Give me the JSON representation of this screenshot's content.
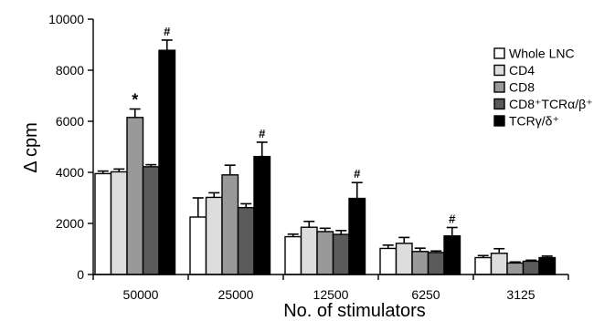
{
  "chart_data": {
    "type": "bar",
    "title": "",
    "xlabel": "No. of stimulators",
    "ylabel": "Δ cpm",
    "ylim": [
      0,
      10000
    ],
    "yticks": [
      0,
      2000,
      4000,
      6000,
      8000,
      10000
    ],
    "grid": false,
    "legend_position": "top-right",
    "categories": [
      "50000",
      "25000",
      "12500",
      "6250",
      "3125"
    ],
    "series": [
      {
        "name": "Whole LNC",
        "color": "#ffffff",
        "values": [
          3950,
          2250,
          1480,
          1020,
          660
        ],
        "errors": [
          100,
          750,
          100,
          130,
          80
        ]
      },
      {
        "name": "CD4",
        "color": "#dddddd",
        "values": [
          4020,
          3020,
          1850,
          1220,
          830
        ],
        "errors": [
          110,
          180,
          230,
          230,
          180
        ]
      },
      {
        "name": "CD8",
        "color": "#999999",
        "values": [
          6150,
          3900,
          1680,
          900,
          450
        ],
        "errors": [
          330,
          380,
          130,
          130,
          40
        ]
      },
      {
        "name": "CD8⁺TCRα/β⁺",
        "color": "#5a5a5a",
        "values": [
          4220,
          2620,
          1570,
          860,
          520
        ],
        "errors": [
          80,
          150,
          150,
          60,
          40
        ]
      },
      {
        "name": "TCRγ/δ⁺",
        "color": "#000000",
        "values": [
          8780,
          4620,
          2980,
          1510,
          660
        ],
        "errors": [
          400,
          560,
          620,
          330,
          60
        ]
      }
    ],
    "annotations": [
      {
        "label": "*",
        "category": "50000",
        "series": "CD8"
      },
      {
        "label": "#",
        "category": "50000",
        "series": "TCRγ/δ⁺"
      },
      {
        "label": "#",
        "category": "25000",
        "series": "TCRγ/δ⁺"
      },
      {
        "label": "#",
        "category": "12500",
        "series": "TCRγ/δ⁺"
      },
      {
        "label": "#",
        "category": "6250",
        "series": "TCRγ/δ⁺"
      }
    ]
  }
}
